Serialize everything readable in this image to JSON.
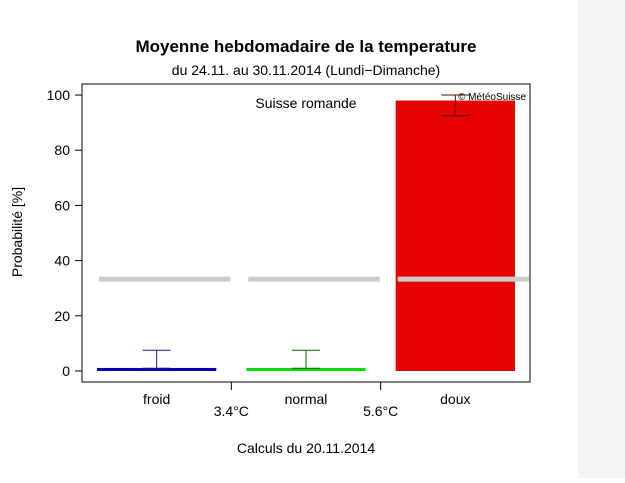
{
  "chart_data": {
    "type": "bar",
    "title": "Moyenne hebdomadaire de la temperature",
    "subtitle": "du 24.11. au 30.11.2014 (Lundi−Dimanche)",
    "region": "Suisse romande",
    "credit": "© MétéoSuisse",
    "ylabel": "Probabilité [%]",
    "footer": "Calculs du 20.11.2014",
    "ylim": [
      -4,
      104
    ],
    "yticks": [
      "0",
      "20",
      "40",
      "60",
      "80",
      "100"
    ],
    "categories": [
      "froid",
      "normal",
      "doux"
    ],
    "thresholds": [
      "3.4°C",
      "5.6°C"
    ],
    "values": [
      1,
      1,
      98
    ],
    "error_low": [
      1,
      1,
      92.5
    ],
    "error_high": [
      7.5,
      7.5,
      100
    ],
    "climatology": 33.3,
    "colors": [
      "#0000b4",
      "#00dc00",
      "#e60000"
    ],
    "error_colors": [
      "#1b1b8a",
      "#006400",
      "#5a0000"
    ],
    "climatology_color": "#cccccc",
    "grid": false,
    "legend": "none"
  }
}
